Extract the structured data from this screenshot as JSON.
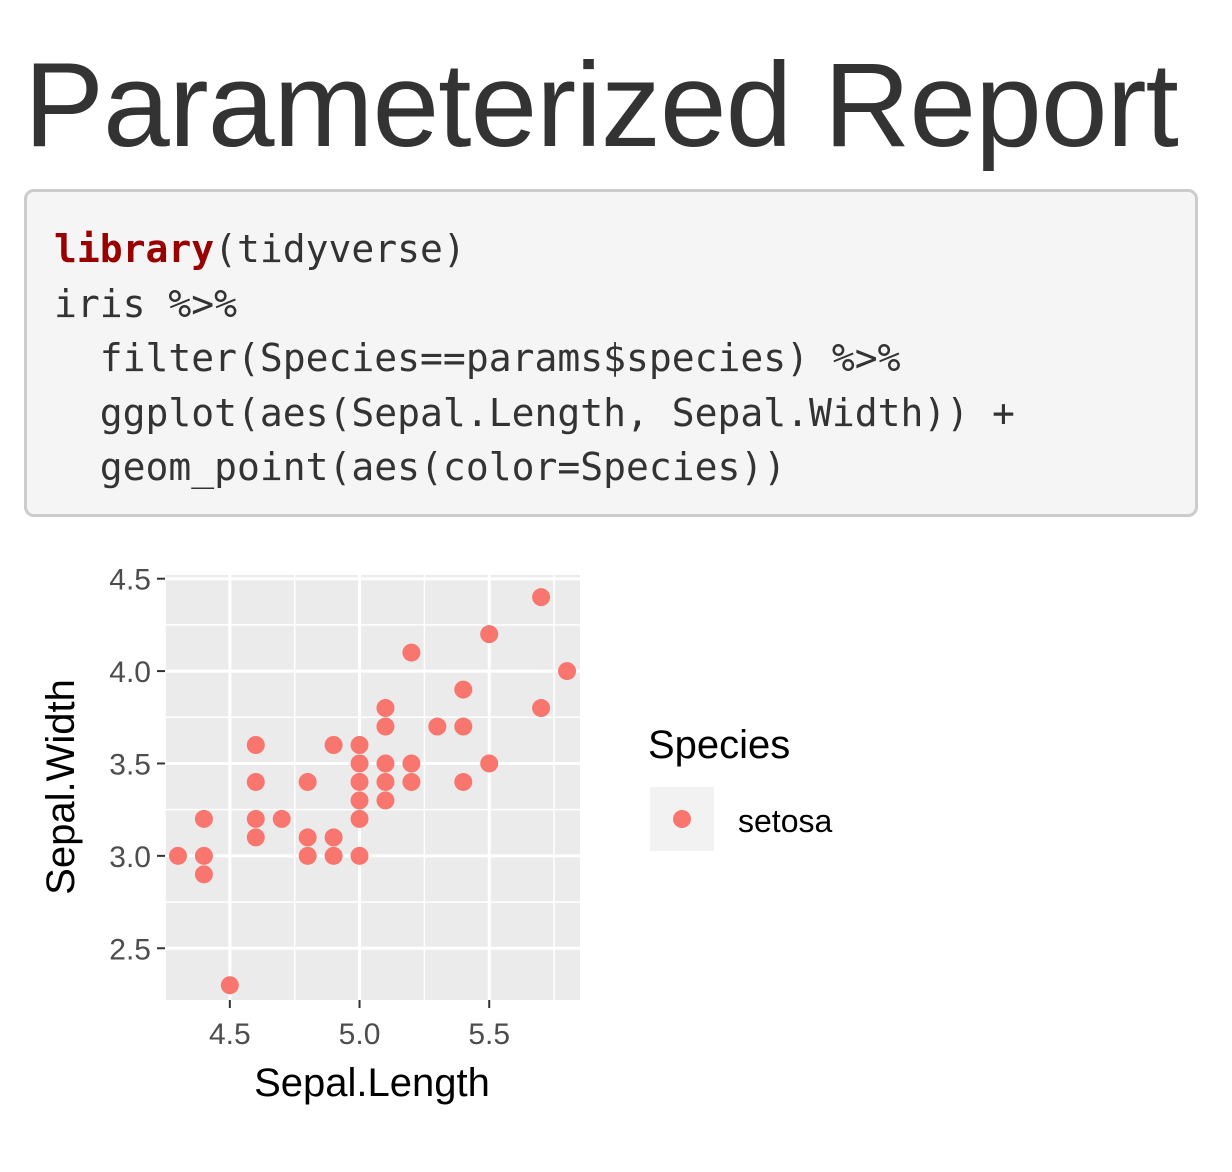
{
  "report": {
    "title": "Parameterized Report"
  },
  "code": {
    "lines": [
      {
        "indent": "",
        "keyword": "library",
        "rest": "(tidyverse)"
      },
      {
        "indent": "",
        "keyword": "",
        "rest": "iris %>%"
      },
      {
        "indent": "  ",
        "keyword": "",
        "rest": "filter(Species==params$species) %>%"
      },
      {
        "indent": "  ",
        "keyword": "",
        "rest": "ggplot(aes(Sepal.Length, Sepal.Width)) +"
      },
      {
        "indent": "  ",
        "keyword": "",
        "rest": "geom_point(aes(color=Species))"
      }
    ]
  },
  "chart_data": {
    "type": "scatter",
    "title": "",
    "xlabel": "Sepal.Length",
    "ylabel": "Sepal.Width",
    "xlim": [
      4.25,
      5.85
    ],
    "ylim": [
      2.22,
      4.52
    ],
    "x_ticks": [
      4.5,
      5.0,
      5.5
    ],
    "x_tick_labels": [
      "4.5",
      "5.0",
      "5.5"
    ],
    "y_ticks": [
      2.5,
      3.0,
      3.5,
      4.0,
      4.5
    ],
    "y_tick_labels": [
      "2.5",
      "3.0",
      "3.5",
      "4.0",
      "4.5"
    ],
    "grid": true,
    "legend_position": "right",
    "legend_title": "Species",
    "series": [
      {
        "name": "setosa",
        "color": "#f8766d",
        "points": [
          [
            4.3,
            3.0
          ],
          [
            4.4,
            3.2
          ],
          [
            4.4,
            3.0
          ],
          [
            4.4,
            2.9
          ],
          [
            4.5,
            2.3
          ],
          [
            4.6,
            3.6
          ],
          [
            4.6,
            3.4
          ],
          [
            4.6,
            3.2
          ],
          [
            4.6,
            3.1
          ],
          [
            4.7,
            3.2
          ],
          [
            4.8,
            3.4
          ],
          [
            4.8,
            3.1
          ],
          [
            4.8,
            3.0
          ],
          [
            4.9,
            3.6
          ],
          [
            4.9,
            3.1
          ],
          [
            4.9,
            3.0
          ],
          [
            5.0,
            3.6
          ],
          [
            5.0,
            3.5
          ],
          [
            5.0,
            3.4
          ],
          [
            5.0,
            3.3
          ],
          [
            5.0,
            3.2
          ],
          [
            5.0,
            3.0
          ],
          [
            5.1,
            3.8
          ],
          [
            5.1,
            3.7
          ],
          [
            5.1,
            3.5
          ],
          [
            5.1,
            3.4
          ],
          [
            5.1,
            3.3
          ],
          [
            5.2,
            4.1
          ],
          [
            5.2,
            3.5
          ],
          [
            5.2,
            3.4
          ],
          [
            5.3,
            3.7
          ],
          [
            5.4,
            3.9
          ],
          [
            5.4,
            3.7
          ],
          [
            5.4,
            3.4
          ],
          [
            5.5,
            4.2
          ],
          [
            5.5,
            3.5
          ],
          [
            5.7,
            4.4
          ],
          [
            5.7,
            3.8
          ],
          [
            5.8,
            4.0
          ]
        ]
      }
    ]
  }
}
